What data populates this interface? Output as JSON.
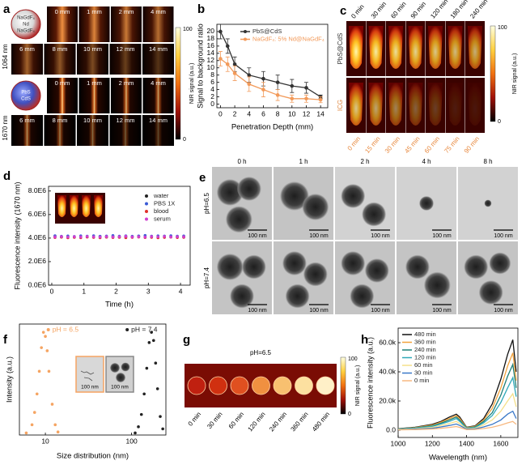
{
  "figure": {
    "panel_labels": [
      "a",
      "b",
      "c",
      "d",
      "e",
      "f",
      "g",
      "h"
    ],
    "a": {
      "depths": [
        "0 mm",
        "1 mm",
        "2 mm",
        "4 mm",
        "6 mm",
        "8 mm",
        "10 mm",
        "12 mm",
        "14 mm"
      ],
      "rows": [
        "1064 nm",
        "1670 nm"
      ],
      "particles": [
        [
          "NaGdF₄",
          "Nd",
          "NaGdF₄"
        ],
        [
          "PbS",
          "CdS"
        ]
      ],
      "colorbar": {
        "max": "100",
        "min": "0",
        "label": "NIR signal (a.u.)"
      }
    },
    "c": {
      "times_top": [
        "0 min",
        "30 min",
        "60 min",
        "90 min",
        "120 min",
        "180 min",
        "240 min"
      ],
      "times_bottom": [
        "0 min",
        "15 min",
        "30 min",
        "45 min",
        "60 min",
        "75 min",
        "90 min"
      ],
      "rows": [
        "PbS@CdS",
        "ICG"
      ],
      "colorbar": {
        "max": "100",
        "min": "0",
        "label": "NIR signal (a.u.)"
      }
    },
    "e": {
      "times": [
        "0 h",
        "1 h",
        "2 h",
        "4 h",
        "8 h"
      ],
      "rows": [
        "pH=6.5",
        "pH=7.4"
      ],
      "scale": "100 nm"
    },
    "g": {
      "title": "pH=6.5",
      "times": [
        "0 min",
        "30 min",
        "60 min",
        "120 min",
        "240 min",
        "360 min",
        "480 min"
      ],
      "colorbar": {
        "max": "100",
        "min": "0",
        "label": "NIR signal (a.u.)"
      }
    }
  },
  "chart_data": [
    {
      "type": "line",
      "xlabel": "Penetration Depth (mm)",
      "ylabel": "Signal to background ratio",
      "x": [
        0,
        1,
        2,
        4,
        6,
        8,
        10,
        12,
        14
      ],
      "xlim": [
        -0.5,
        15
      ],
      "xticks": [
        0,
        2,
        4,
        6,
        8,
        10,
        12,
        14
      ],
      "ylim": [
        -1,
        22
      ],
      "yticks": [
        0,
        2,
        4,
        6,
        8,
        10,
        12,
        14,
        16,
        18,
        20
      ],
      "legend": "upper right",
      "series": [
        {
          "name": "PbS@CdS",
          "color": "#333333",
          "marker": true,
          "values": [
            20,
            16,
            11,
            8,
            7,
            6,
            5,
            4.5,
            2
          ],
          "errors": [
            2,
            2,
            2,
            2,
            2,
            2,
            1.8,
            1.5,
            0.5
          ]
        },
        {
          "name": "NaGdF₄: 5% Nd@NaGdF₄",
          "color": "#f29a5a",
          "marker": true,
          "values": [
            12.5,
            11,
            8.5,
            5.5,
            4,
            2.5,
            1.5,
            1.5,
            1.2
          ],
          "errors": [
            2,
            2,
            2,
            2,
            2,
            1.5,
            1,
            1,
            0.8
          ]
        }
      ]
    },
    {
      "type": "scatter",
      "xlabel": "Time (h)",
      "ylabel": "Fluorescence intensity (1670 nm)",
      "x": [
        0.1,
        0.3,
        0.5,
        0.7,
        0.9,
        1.1,
        1.3,
        1.5,
        1.7,
        1.9,
        2.1,
        2.3,
        2.5,
        2.7,
        2.9,
        3.1,
        3.3,
        3.5,
        3.7,
        3.9,
        4.1
      ],
      "xlim": [
        -0.1,
        4.3
      ],
      "xticks": [
        0,
        1,
        2,
        3,
        4
      ],
      "ylim": [
        0,
        8400000
      ],
      "yticks": [
        {
          "value": 0,
          "label": "0.0E6"
        },
        {
          "value": 2000000,
          "label": "2.0E6"
        },
        {
          "value": 4000000,
          "label": "4.0E6"
        },
        {
          "value": 6000000,
          "label": "6.0E6"
        },
        {
          "value": 8000000,
          "label": "8.0E6"
        }
      ],
      "legend": "upper right",
      "series": [
        {
          "name": "water",
          "color": "#222222",
          "values": [
            4150000,
            4100000,
            4120000,
            4080000,
            4130000,
            4110000,
            4090000,
            4140000,
            4100000,
            4120000,
            4080000,
            4130000,
            4110000,
            4150000,
            4100000,
            4120000,
            4090000,
            4140000,
            4110000,
            4130000,
            4100000
          ]
        },
        {
          "name": "PBS 1X",
          "color": "#3b5bd6",
          "values": [
            4200000,
            4150000,
            4180000,
            4140000,
            4190000,
            4160000,
            4200000,
            4150000,
            4170000,
            4210000,
            4160000,
            4190000,
            4150000,
            4180000,
            4220000,
            4160000,
            4190000,
            4170000,
            4200000,
            4160000,
            4180000
          ]
        },
        {
          "name": "blood",
          "color": "#e0302a",
          "values": [
            4050000,
            4080000,
            4030000,
            4070000,
            4040000,
            4090000,
            4060000,
            4030000,
            4080000,
            4050000,
            4070000,
            4040000,
            4060000,
            4090000,
            4050000,
            4070000,
            4030000,
            4060000,
            4080000,
            4050000,
            4070000
          ]
        },
        {
          "name": "serum",
          "color": "#d040d0",
          "values": [
            4100000,
            4130000,
            4090000,
            4120000,
            4100000,
            4140000,
            4110000,
            4090000,
            4130000,
            4100000,
            4120000,
            4150000,
            4100000,
            4120000,
            4090000,
            4130000,
            4110000,
            4140000,
            4100000,
            4120000,
            4110000
          ]
        }
      ]
    },
    {
      "type": "scatter",
      "xlabel": "Size distribution (nm)",
      "ylabel": "Intensity (a.u.)",
      "xlog": true,
      "xlim": [
        5,
        250
      ],
      "xticks": [
        10,
        100
      ],
      "ylim": [
        0,
        108
      ],
      "legend": "top",
      "inset_scale": "100 nm",
      "series": [
        {
          "name": "pH = 6.5",
          "color": "#f5a462",
          "x": [
            6,
            7,
            7.5,
            8,
            8.5,
            9,
            9.5,
            10,
            10.5,
            11,
            12,
            13,
            14
          ],
          "values": [
            2,
            10,
            22,
            40,
            62,
            85,
            100,
            96,
            82,
            62,
            30,
            10,
            3
          ]
        },
        {
          "name": "pH = 7.4",
          "color": "#222222",
          "x": [
            110,
            120,
            130,
            140,
            150,
            160,
            170,
            180,
            190,
            200,
            215,
            230
          ],
          "values": [
            2,
            8,
            20,
            40,
            65,
            90,
            100,
            92,
            70,
            45,
            18,
            6
          ]
        }
      ]
    },
    {
      "type": "line",
      "xlabel": "Wavelength (nm)",
      "ylabel": "Fluorescence intensity (a.u.)",
      "x": [
        1000,
        1100,
        1200,
        1250,
        1300,
        1340,
        1360,
        1400,
        1450,
        1500,
        1550,
        1600,
        1640,
        1670,
        1690
      ],
      "xlim": [
        1000,
        1700
      ],
      "xticks": [
        1000,
        1200,
        1400,
        1600
      ],
      "ylim": [
        -5000,
        70000
      ],
      "yticks": [
        {
          "value": 0,
          "label": "0.0"
        },
        {
          "value": 20000,
          "label": "20.0k"
        },
        {
          "value": 40000,
          "label": "40.0k"
        },
        {
          "value": 60000,
          "label": "60.0k"
        }
      ],
      "legend": "upper left",
      "series": [
        {
          "name": "480 min",
          "color": "#111111",
          "values": [
            1000,
            2000,
            4000,
            6000,
            9000,
            11000,
            9000,
            2000,
            3000,
            8000,
            18000,
            35000,
            52000,
            62000,
            40000
          ]
        },
        {
          "name": "360 min",
          "color": "#f2a23c",
          "values": [
            900,
            1800,
            3500,
            5500,
            8000,
            10000,
            8000,
            1800,
            2600,
            7000,
            15000,
            29000,
            44000,
            53000,
            34000
          ]
        },
        {
          "name": "240 min",
          "color": "#1f7f76",
          "values": [
            800,
            1600,
            3000,
            4800,
            7000,
            9000,
            7000,
            1500,
            2200,
            6000,
            12000,
            24000,
            37000,
            45000,
            29000
          ]
        },
        {
          "name": "120 min",
          "color": "#2fa8b8",
          "values": [
            700,
            1400,
            2600,
            4200,
            6000,
            8000,
            6000,
            1300,
            1800,
            5000,
            10000,
            19000,
            29000,
            36000,
            23000
          ]
        },
        {
          "name": "60 min",
          "color": "#f5e08a",
          "values": [
            500,
            1000,
            2000,
            3200,
            4600,
            6000,
            4500,
            1000,
            1400,
            3600,
            7000,
            13000,
            20000,
            25000,
            16000
          ]
        },
        {
          "name": "30 min",
          "color": "#3a78c8",
          "values": [
            300,
            700,
            1300,
            2200,
            3200,
            4200,
            3200,
            700,
            900,
            2200,
            4000,
            7000,
            11000,
            13000,
            8000
          ]
        },
        {
          "name": "0 min",
          "color": "#f7b880",
          "values": [
            200,
            400,
            800,
            1300,
            1900,
            2500,
            1900,
            400,
            500,
            1100,
            2000,
            3500,
            5000,
            6000,
            4000
          ]
        }
      ]
    }
  ]
}
